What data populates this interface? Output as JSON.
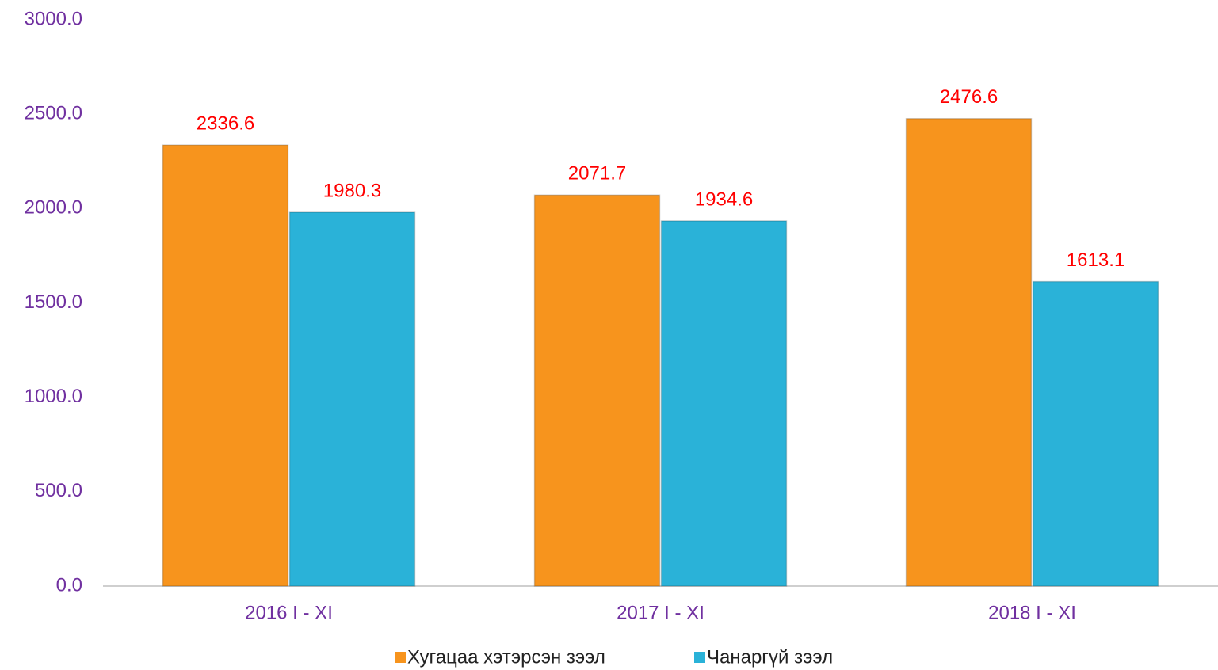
{
  "chart_data": {
    "type": "bar",
    "categories": [
      "2016 I - XI",
      "2017 I - XI",
      "2018 I - XI"
    ],
    "series": [
      {
        "name": "Хугацаа хэтэрсэн зээл",
        "color": "#f7941d",
        "values": [
          2336.6,
          2071.7,
          2476.6
        ]
      },
      {
        "name": "Чанаргүй зээл",
        "color": "#2ab2d8",
        "values": [
          1980.3,
          1934.6,
          1613.1
        ]
      }
    ],
    "ylim": [
      0,
      3000
    ],
    "yticks": [
      {
        "value": 0,
        "label": "0.0"
      },
      {
        "value": 500,
        "label": "500.0"
      },
      {
        "value": 1000,
        "label": "1000.0"
      },
      {
        "value": 1500,
        "label": "1500.0"
      },
      {
        "value": 2000,
        "label": "2000.0"
      },
      {
        "value": 2500,
        "label": "2500.0"
      },
      {
        "value": 3000,
        "label": "3000.0"
      }
    ],
    "grid": false,
    "legend": "bottom"
  }
}
